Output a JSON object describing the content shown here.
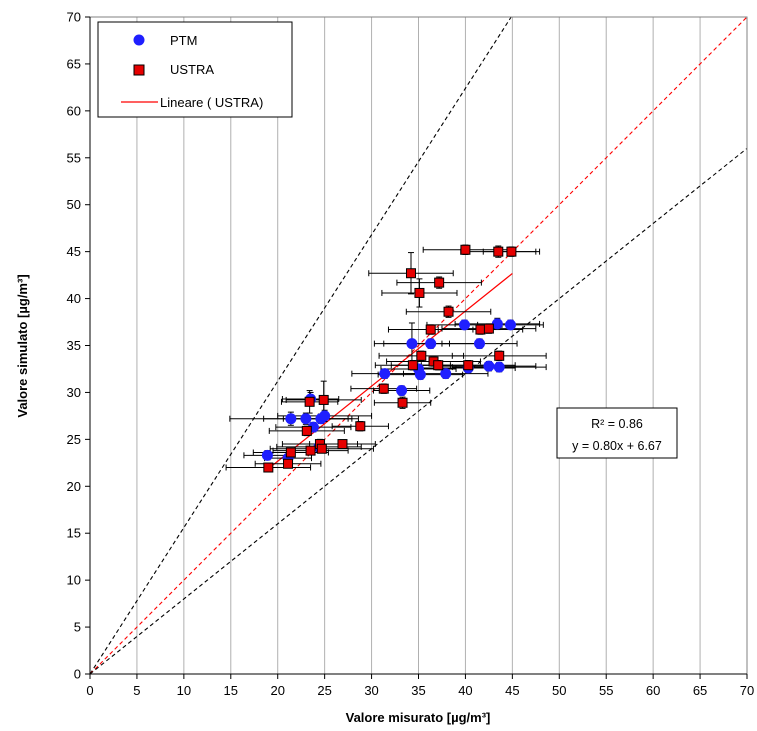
{
  "chart_data": {
    "type": "scatter",
    "xlabel": "Valore misurato [µg/m³]",
    "ylabel": "Valore simulato [µg/m³]",
    "xlim": [
      0,
      70
    ],
    "ylim": [
      0,
      70
    ],
    "x_ticks": [
      "0",
      "5",
      "10",
      "15",
      "20",
      "25",
      "30",
      "35",
      "40",
      "45",
      "50",
      "55",
      "60",
      "65",
      "70"
    ],
    "y_ticks": [
      "0",
      "5",
      "10",
      "15",
      "20",
      "25",
      "30",
      "35",
      "40",
      "45",
      "50",
      "55",
      "60",
      "65",
      "70"
    ],
    "grid": "vertical",
    "legend_position": "top-left",
    "legend": [
      "PTM",
      "USTRA",
      "Lineare ( USTRA)"
    ],
    "colors": {
      "ptm": "#1f1fff",
      "ustra": "#e60000",
      "trend": "#ff0000",
      "reference": "#000000",
      "errorbar": "#000000",
      "grid": "#b0b0b0"
    },
    "series": [
      {
        "name": "PTM",
        "marker": "circle",
        "points": [
          {
            "x": 18.9,
            "y": 23.3,
            "xerr": 2.5,
            "yerr": 0.5
          },
          {
            "x": 21.1,
            "y": 23.0,
            "xerr": 2.5,
            "yerr": 0.4
          },
          {
            "x": 21.4,
            "y": 27.2,
            "xerr": 6.5,
            "yerr": 0.7
          },
          {
            "x": 23.0,
            "y": 27.2,
            "xerr": 4.5,
            "yerr": 0.6
          },
          {
            "x": 23.5,
            "y": 29.3,
            "xerr": 3.0,
            "yerr": 0.7
          },
          {
            "x": 23.8,
            "y": 26.3,
            "xerr": 4.0,
            "yerr": 0.5
          },
          {
            "x": 24.4,
            "y": 24.2,
            "xerr": 4.5,
            "yerr": 0.5
          },
          {
            "x": 24.6,
            "y": 27.2,
            "xerr": 4.0,
            "yerr": 0.5
          },
          {
            "x": 25.0,
            "y": 27.5,
            "xerr": 5.0,
            "yerr": 0.6
          },
          {
            "x": 31.4,
            "y": 32.0,
            "xerr": 3.5,
            "yerr": 0.5
          },
          {
            "x": 33.2,
            "y": 30.2,
            "xerr": 3.0,
            "yerr": 0.5
          },
          {
            "x": 34.3,
            "y": 35.2,
            "xerr": 4.0,
            "yerr": 2.2
          },
          {
            "x": 35.0,
            "y": 32.5,
            "xerr": 4.0,
            "yerr": 0.5
          },
          {
            "x": 35.2,
            "y": 31.9,
            "xerr": 4.5,
            "yerr": 0.5
          },
          {
            "x": 36.3,
            "y": 35.2,
            "xerr": 5.0,
            "yerr": 0.5
          },
          {
            "x": 37.9,
            "y": 32.0,
            "xerr": 4.5,
            "yerr": 0.5
          },
          {
            "x": 39.9,
            "y": 37.2,
            "xerr": 4.0,
            "yerr": 0.5
          },
          {
            "x": 40.3,
            "y": 32.6,
            "xerr": 5.0,
            "yerr": 0.5
          },
          {
            "x": 41.5,
            "y": 35.2,
            "xerr": 4.0,
            "yerr": 0.5
          },
          {
            "x": 42.5,
            "y": 32.8,
            "xerr": 5.0,
            "yerr": 0.5
          },
          {
            "x": 43.4,
            "y": 37.3,
            "xerr": 4.5,
            "yerr": 0.6
          },
          {
            "x": 43.6,
            "y": 32.7,
            "xerr": 5.0,
            "yerr": 0.5
          },
          {
            "x": 44.8,
            "y": 37.2,
            "xerr": 3.5,
            "yerr": 0.5
          }
        ]
      },
      {
        "name": "USTRA",
        "marker": "square",
        "points": [
          {
            "x": 19.0,
            "y": 22.0,
            "xerr": 4.5,
            "yerr": 0.4
          },
          {
            "x": 21.1,
            "y": 22.4,
            "xerr": 3.5,
            "yerr": 0.4
          },
          {
            "x": 21.4,
            "y": 23.6,
            "xerr": 4.0,
            "yerr": 0.4
          },
          {
            "x": 23.1,
            "y": 25.9,
            "xerr": 4.0,
            "yerr": 0.5
          },
          {
            "x": 23.4,
            "y": 29.0,
            "xerr": 3.0,
            "yerr": 1.2
          },
          {
            "x": 23.5,
            "y": 23.8,
            "xerr": 4.0,
            "yerr": 0.4
          },
          {
            "x": 24.5,
            "y": 24.5,
            "xerr": 4.0,
            "yerr": 0.5
          },
          {
            "x": 24.7,
            "y": 24.0,
            "xerr": 5.5,
            "yerr": 0.4
          },
          {
            "x": 24.9,
            "y": 29.2,
            "xerr": 4.0,
            "yerr": 2.0
          },
          {
            "x": 26.9,
            "y": 24.5,
            "xerr": 3.5,
            "yerr": 0.4
          },
          {
            "x": 28.8,
            "y": 26.4,
            "xerr": 3.0,
            "yerr": 0.5
          },
          {
            "x": 31.3,
            "y": 30.4,
            "xerr": 3.5,
            "yerr": 0.5
          },
          {
            "x": 33.3,
            "y": 28.9,
            "xerr": 3.0,
            "yerr": 0.6
          },
          {
            "x": 34.2,
            "y": 42.7,
            "xerr": 4.5,
            "yerr": 2.2
          },
          {
            "x": 34.4,
            "y": 32.9,
            "xerr": 4.0,
            "yerr": 0.5
          },
          {
            "x": 35.1,
            "y": 40.6,
            "xerr": 4.0,
            "yerr": 1.5
          },
          {
            "x": 35.3,
            "y": 33.9,
            "xerr": 4.5,
            "yerr": 0.5
          },
          {
            "x": 36.3,
            "y": 36.7,
            "xerr": 4.5,
            "yerr": 0.5
          },
          {
            "x": 36.6,
            "y": 33.3,
            "xerr": 5.0,
            "yerr": 0.5
          },
          {
            "x": 37.1,
            "y": 32.9,
            "xerr": 5.0,
            "yerr": 0.5
          },
          {
            "x": 37.2,
            "y": 41.7,
            "xerr": 4.5,
            "yerr": 0.6
          },
          {
            "x": 38.2,
            "y": 38.6,
            "xerr": 4.5,
            "yerr": 0.6
          },
          {
            "x": 40.0,
            "y": 45.2,
            "xerr": 4.5,
            "yerr": 0.5
          },
          {
            "x": 40.3,
            "y": 32.9,
            "xerr": 5.0,
            "yerr": 0.5
          },
          {
            "x": 41.6,
            "y": 36.7,
            "xerr": 4.5,
            "yerr": 0.5
          },
          {
            "x": 42.5,
            "y": 36.8,
            "xerr": 5.0,
            "yerr": 0.5
          },
          {
            "x": 43.5,
            "y": 45.0,
            "xerr": 4.0,
            "yerr": 0.6
          },
          {
            "x": 43.6,
            "y": 33.9,
            "xerr": 5.0,
            "yerr": 0.5
          },
          {
            "x": 44.9,
            "y": 45.0,
            "xerr": 3.0,
            "yerr": 0.5
          }
        ]
      }
    ],
    "trendline": {
      "name": "Lineare ( USTRA)",
      "slope": 0.8,
      "intercept": 6.67,
      "x_range": [
        19,
        45
      ]
    },
    "reference_lines": [
      {
        "style": "dashed",
        "color": "black",
        "slope": 1.56
      },
      {
        "style": "dashed",
        "color": "red",
        "slope": 1.0
      },
      {
        "style": "dashed",
        "color": "black",
        "slope": 0.8
      }
    ],
    "annotation": {
      "r2": "R² = 0.86",
      "equation": "y = 0.80x + 6.67"
    }
  }
}
